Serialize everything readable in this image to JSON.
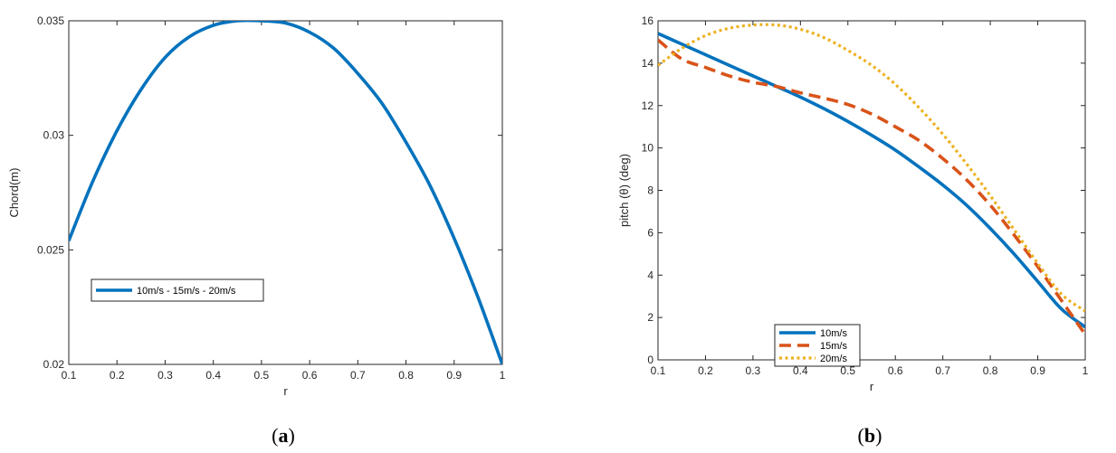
{
  "chart_data": [
    {
      "type": "line",
      "panel": "a",
      "caption_open": "(",
      "caption_letter": "a",
      "caption_close": ")",
      "xlabel": "r",
      "ylabel": "Chord(m)",
      "xlim": [
        0.1,
        1
      ],
      "ylim": [
        0.02,
        0.035
      ],
      "xticks": [
        "0.1",
        "0.2",
        "0.3",
        "0.4",
        "0.5",
        "0.6",
        "0.7",
        "0.8",
        "0.9",
        "1"
      ],
      "yticks": [
        "0.02",
        "0.025",
        "0.03",
        "0.035"
      ],
      "grid": false,
      "legend_position": "middle-left",
      "series": [
        {
          "name": "10m/s - 15m/s - 20m/s",
          "color": "#0072BD",
          "style": "solid",
          "x": [
            0.1,
            0.15,
            0.2,
            0.25,
            0.3,
            0.35,
            0.4,
            0.45,
            0.5,
            0.55,
            0.6,
            0.65,
            0.7,
            0.75,
            0.8,
            0.85,
            0.9,
            0.95,
            1.0
          ],
          "y": [
            0.0254,
            0.028,
            0.0302,
            0.032,
            0.0334,
            0.0343,
            0.0348,
            0.035,
            0.035,
            0.0349,
            0.0345,
            0.0338,
            0.0327,
            0.0314,
            0.0297,
            0.0278,
            0.0255,
            0.0229,
            0.02
          ]
        }
      ]
    },
    {
      "type": "line",
      "panel": "b",
      "caption_open": "(",
      "caption_letter": "b",
      "caption_close": ")",
      "xlabel": "r",
      "ylabel": "pitch (θ) (deg)",
      "xlim": [
        0.1,
        1
      ],
      "ylim": [
        0,
        16
      ],
      "xticks": [
        "0.1",
        "0.2",
        "0.3",
        "0.4",
        "0.5",
        "0.6",
        "0.7",
        "0.8",
        "0.9",
        "1"
      ],
      "yticks": [
        "0",
        "2",
        "4",
        "6",
        "8",
        "10",
        "12",
        "14",
        "16"
      ],
      "grid": false,
      "legend_position": "bottom-left",
      "series": [
        {
          "name": "10m/s",
          "color": "#0072BD",
          "style": "solid",
          "x": [
            0.1,
            0.15,
            0.2,
            0.25,
            0.3,
            0.35,
            0.4,
            0.45,
            0.5,
            0.55,
            0.6,
            0.65,
            0.7,
            0.75,
            0.8,
            0.85,
            0.9,
            0.95,
            1.0
          ],
          "y": [
            15.4,
            14.9,
            14.4,
            13.9,
            13.4,
            12.9,
            12.4,
            11.85,
            11.25,
            10.6,
            9.9,
            9.1,
            8.25,
            7.3,
            6.2,
            5.0,
            3.7,
            2.4,
            1.55
          ]
        },
        {
          "name": "15m/s",
          "color": "#D95319",
          "style": "dashed",
          "x": [
            0.1,
            0.15,
            0.2,
            0.25,
            0.3,
            0.35,
            0.4,
            0.45,
            0.5,
            0.55,
            0.6,
            0.65,
            0.7,
            0.75,
            0.8,
            0.85,
            0.9,
            0.95,
            1.0
          ],
          "y": [
            15.1,
            14.2,
            13.8,
            13.4,
            13.1,
            12.9,
            12.6,
            12.35,
            12.05,
            11.6,
            11.0,
            10.35,
            9.5,
            8.5,
            7.3,
            5.9,
            4.4,
            2.8,
            1.2
          ]
        },
        {
          "name": "20m/s",
          "color": "#EDB120",
          "style": "dotted",
          "x": [
            0.1,
            0.15,
            0.2,
            0.25,
            0.3,
            0.35,
            0.4,
            0.45,
            0.5,
            0.55,
            0.6,
            0.65,
            0.7,
            0.75,
            0.8,
            0.85,
            0.9,
            0.95,
            1.0
          ],
          "y": [
            13.9,
            14.7,
            15.3,
            15.65,
            15.8,
            15.8,
            15.6,
            15.2,
            14.6,
            13.9,
            13.0,
            11.9,
            10.65,
            9.25,
            7.75,
            6.15,
            4.55,
            3.1,
            2.3
          ]
        }
      ]
    }
  ]
}
